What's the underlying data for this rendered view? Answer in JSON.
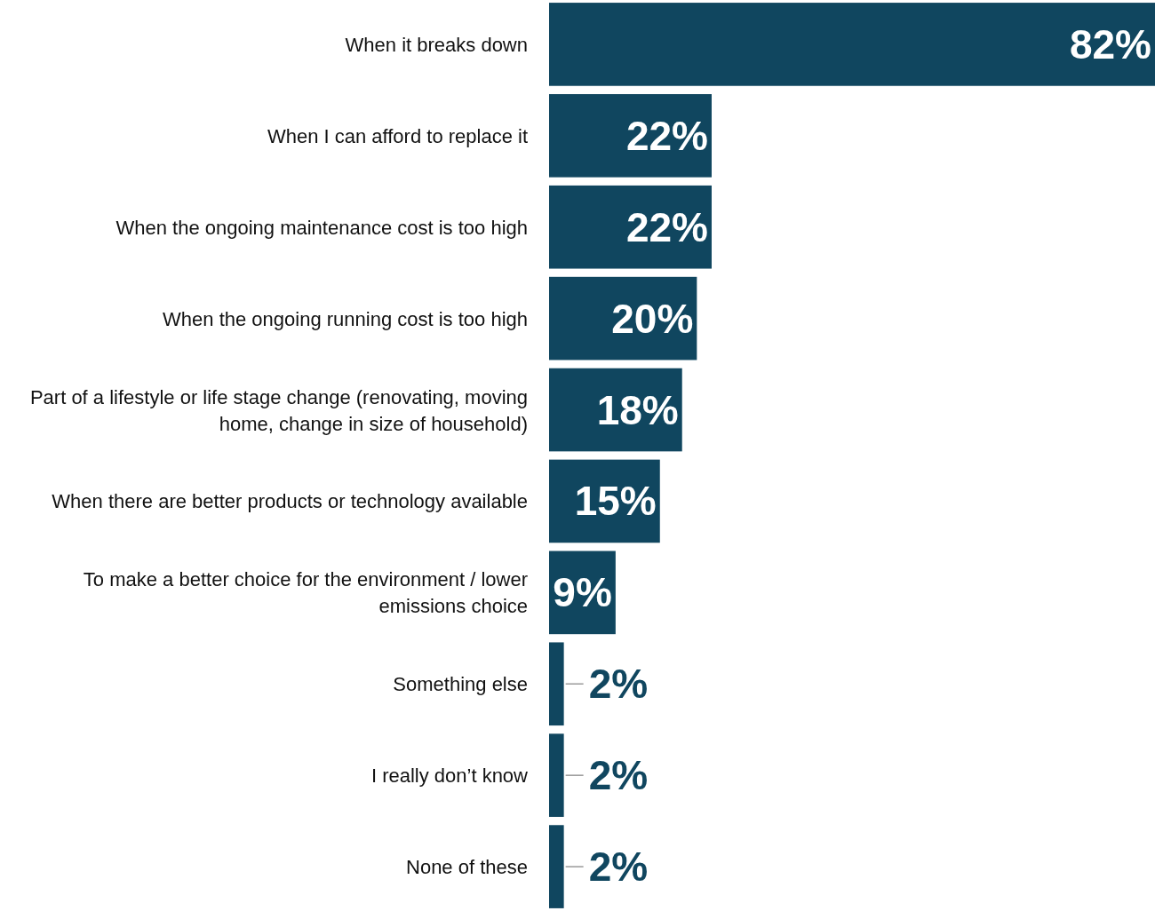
{
  "chart_data": {
    "type": "bar",
    "orientation": "horizontal",
    "categories": [
      "When it breaks down",
      "When I can afford to replace it",
      "When the ongoing maintenance cost is too high",
      "When the ongoing running cost is too high",
      "Part of a lifestyle or life stage change (renovating, moving home, change in size of household)",
      "When there are better products or technology available",
      "To make a better choice for the environment / lower emissions choice",
      "Something else",
      "I really don’t know",
      "None of these"
    ],
    "values": [
      82,
      22,
      22,
      20,
      18,
      15,
      9,
      2,
      2,
      2
    ],
    "value_labels": [
      "82%",
      "22%",
      "22%",
      "20%",
      "18%",
      "15%",
      "9%",
      "2%",
      "2%",
      "2%"
    ],
    "color": "#10465f"
  }
}
